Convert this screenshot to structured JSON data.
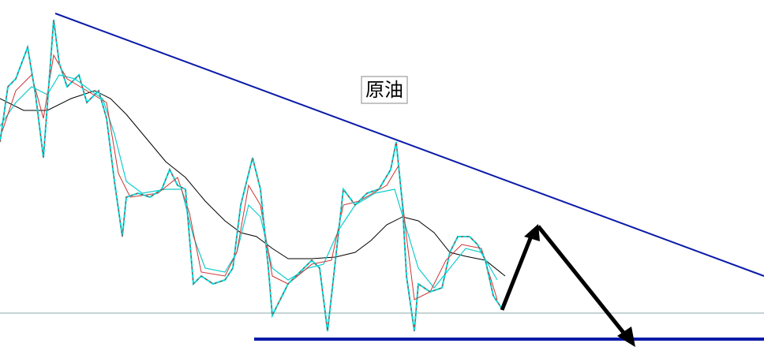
{
  "label": "原油"
}
